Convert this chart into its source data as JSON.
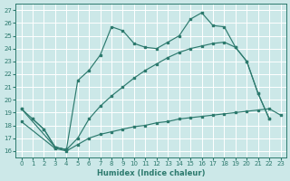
{
  "bg_color": "#cce8e8",
  "grid_color": "#b8d8d8",
  "line_color": "#2d7a6e",
  "xlabel": "Humidex (Indice chaleur)",
  "xticks": [
    0,
    1,
    2,
    3,
    4,
    5,
    6,
    7,
    8,
    9,
    10,
    11,
    12,
    13,
    14,
    15,
    16,
    17,
    18,
    19,
    20,
    21,
    22,
    23
  ],
  "yticks": [
    16,
    17,
    18,
    19,
    20,
    21,
    22,
    23,
    24,
    25,
    26,
    27
  ],
  "xlim": [
    -0.5,
    23.5
  ],
  "ylim": [
    15.5,
    27.5
  ],
  "line1_x": [
    0,
    1,
    2,
    3,
    4,
    5,
    6,
    7,
    8,
    9,
    10,
    11,
    12,
    13,
    14,
    15,
    16,
    17,
    18,
    19,
    20,
    21,
    22
  ],
  "line1_y": [
    19.3,
    18.5,
    17.7,
    16.3,
    16.1,
    21.5,
    22.3,
    23.5,
    25.7,
    25.4,
    24.4,
    24.1,
    24.0,
    24.5,
    25.0,
    26.3,
    26.8,
    25.8,
    25.7,
    24.1,
    23.0,
    20.5,
    18.5
  ],
  "line2_x": [
    0,
    3,
    4,
    5,
    6,
    7,
    8,
    9,
    10,
    11,
    12,
    13,
    14,
    15,
    16,
    17,
    18,
    19,
    20,
    21,
    22
  ],
  "line2_y": [
    19.3,
    16.3,
    16.1,
    17.0,
    18.5,
    19.5,
    20.3,
    21.0,
    21.7,
    22.3,
    22.8,
    23.3,
    23.7,
    24.0,
    24.2,
    24.4,
    24.5,
    24.1,
    23.0,
    20.5,
    18.5
  ],
  "line3_x": [
    0,
    3,
    4,
    5,
    6,
    7,
    8,
    9,
    10,
    11,
    12,
    13,
    14,
    15,
    16,
    17,
    18,
    19,
    20,
    21,
    22,
    23
  ],
  "line3_y": [
    18.3,
    16.2,
    16.0,
    16.5,
    17.0,
    17.3,
    17.5,
    17.7,
    17.9,
    18.0,
    18.2,
    18.3,
    18.5,
    18.6,
    18.7,
    18.8,
    18.9,
    19.0,
    19.1,
    19.2,
    19.3,
    18.8
  ],
  "line4_x": [
    1,
    2,
    3,
    4
  ],
  "line4_y": [
    18.5,
    17.7,
    16.3,
    16.1
  ]
}
